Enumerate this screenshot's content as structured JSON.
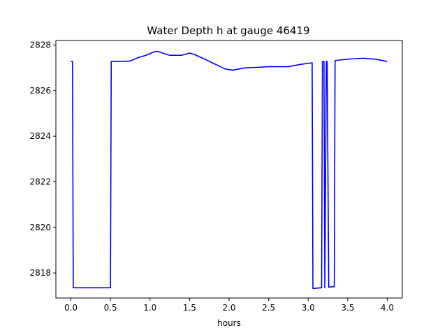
{
  "chart_data": {
    "type": "line",
    "title": "Water Depth h at gauge 46419",
    "xlabel": "hours",
    "ylabel": "",
    "xlim": [
      -0.19,
      4.19
    ],
    "ylim": [
      2816.9,
      2828.2
    ],
    "xticks": [
      0.0,
      0.5,
      1.0,
      1.5,
      2.0,
      2.5,
      3.0,
      3.5,
      4.0
    ],
    "xtick_labels": [
      "0.0",
      "0.5",
      "1.0",
      "1.5",
      "2.0",
      "2.5",
      "3.0",
      "3.5",
      "4.0"
    ],
    "yticks": [
      2818,
      2820,
      2822,
      2824,
      2826,
      2828
    ],
    "ytick_labels": [
      "2818",
      "2820",
      "2822",
      "2824",
      "2826",
      "2828"
    ],
    "grid": false,
    "series_color": "#0000ff",
    "series": [
      {
        "x": [
          0.0,
          0.02,
          0.03,
          0.5,
          0.51,
          0.6,
          0.75,
          0.85,
          0.95,
          1.05,
          1.1,
          1.2,
          1.25,
          1.4,
          1.5,
          1.55,
          1.65,
          1.8,
          1.95,
          2.05,
          2.2,
          2.35,
          2.5,
          2.75,
          2.9,
          3.05,
          3.06,
          3.17,
          3.18,
          3.2,
          3.21,
          3.23,
          3.24,
          3.26,
          3.33,
          3.34,
          3.5,
          3.7,
          3.85,
          4.0
        ],
        "y": [
          2827.28,
          2827.28,
          2817.35,
          2817.35,
          2827.28,
          2827.28,
          2827.3,
          2827.45,
          2827.55,
          2827.7,
          2827.72,
          2827.6,
          2827.55,
          2827.55,
          2827.65,
          2827.6,
          2827.45,
          2827.2,
          2826.95,
          2826.9,
          2827.0,
          2827.02,
          2827.05,
          2827.05,
          2827.15,
          2827.22,
          2817.32,
          2817.35,
          2827.28,
          2827.28,
          2817.35,
          2827.28,
          2827.28,
          2817.38,
          2817.4,
          2827.32,
          2827.38,
          2827.42,
          2827.38,
          2827.28
        ]
      }
    ]
  }
}
